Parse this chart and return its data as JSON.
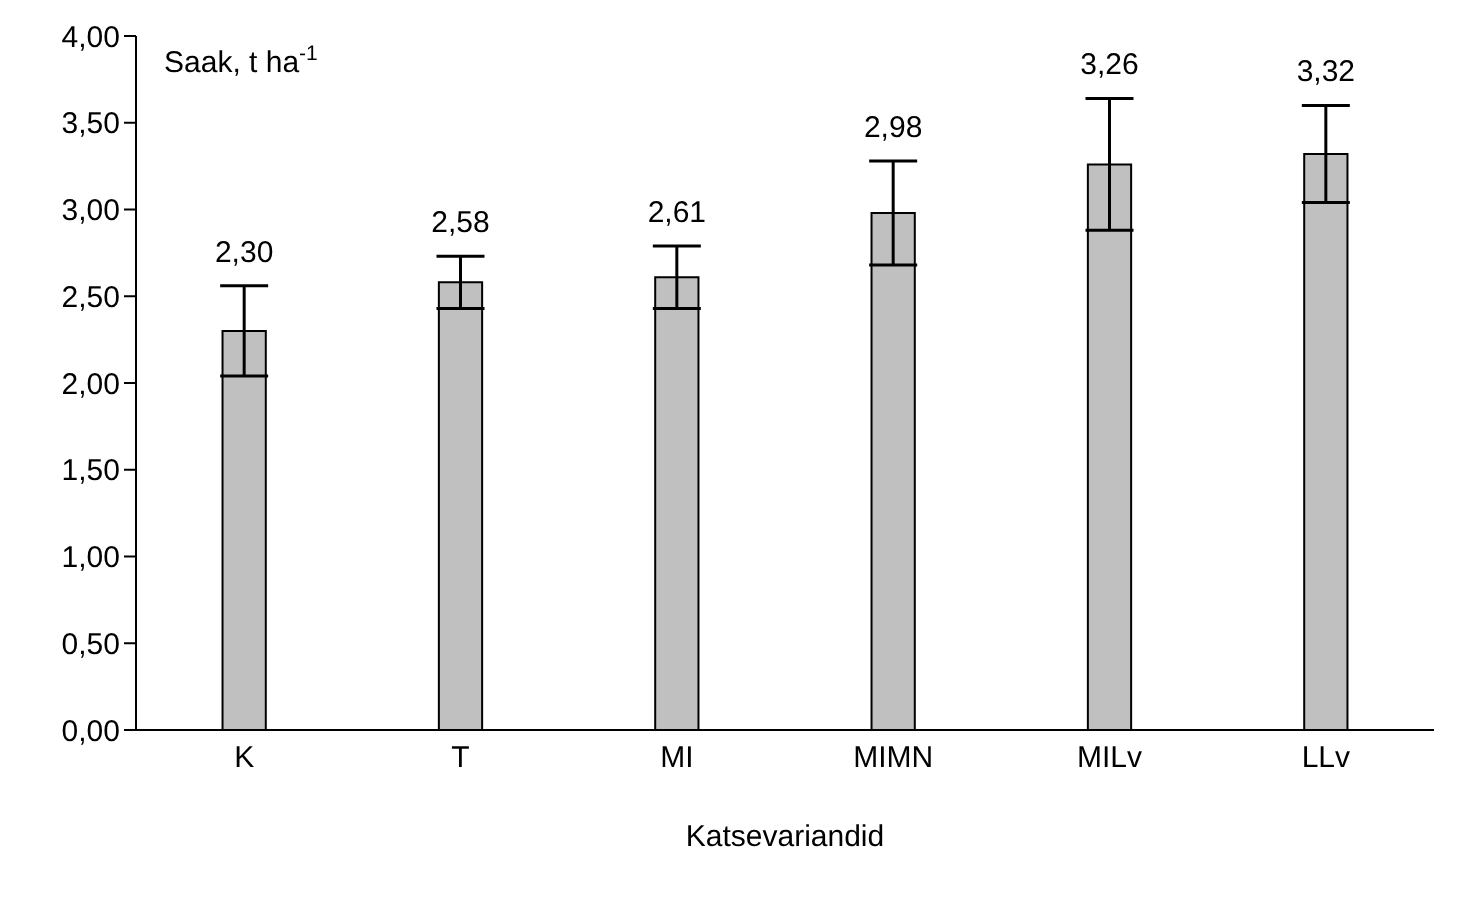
{
  "chart_data": {
    "type": "bar",
    "ylabel": "Saak, t ha$^{-1}$",
    "xlabel": "Katsevariandid",
    "categories": [
      "K",
      "T",
      "MI",
      "MIMN",
      "MILv",
      "LLv"
    ],
    "values": [
      2.3,
      2.58,
      2.61,
      2.98,
      3.26,
      3.32
    ],
    "value_labels": [
      "2,30",
      "2,58",
      "2,61",
      "2,98",
      "3,26",
      "3,32"
    ],
    "errors": [
      0.26,
      0.15,
      0.18,
      0.3,
      0.38,
      0.28
    ],
    "color": "#c0c0c0",
    "ylim": [
      0,
      4
    ],
    "yticks": [
      {
        "value": 0,
        "label": "0,00"
      },
      {
        "value": 0.5,
        "label": "0,50"
      },
      {
        "value": 1,
        "label": "1,00"
      },
      {
        "value": 1.5,
        "label": "1,50"
      },
      {
        "value": 2,
        "label": "2,00"
      },
      {
        "value": 2.5,
        "label": "2,50"
      },
      {
        "value": 3,
        "label": "3,00"
      },
      {
        "value": 3.5,
        "label": "3,50"
      },
      {
        "value": 4,
        "label": "4,00"
      }
    ],
    "grid": false,
    "legend": false
  }
}
